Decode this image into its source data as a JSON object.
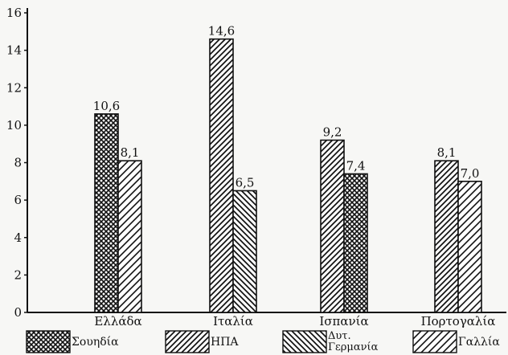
{
  "chart_data": {
    "type": "bar",
    "categories": [
      "Ελλάδα",
      "Ιταλία",
      "Ισπανία",
      "Πορτογαλία"
    ],
    "ylim": [
      0,
      16
    ],
    "yticks": [
      0,
      2,
      4,
      6,
      8,
      10,
      12,
      14,
      16
    ],
    "grid": false,
    "legend_placement": "bottom",
    "legend": [
      {
        "key": "sweden",
        "label_lines": [
          "Σουηδία"
        ],
        "pattern": "crosshatch"
      },
      {
        "key": "usa",
        "label_lines": [
          "ΗΠΑ"
        ],
        "pattern": "diagonal-dense"
      },
      {
        "key": "wgermany",
        "label_lines": [
          "Δυτ.",
          "Γερμανία"
        ],
        "pattern": "backslash"
      },
      {
        "key": "france",
        "label_lines": [
          "Γαλλία"
        ],
        "pattern": "diagonal-sparse"
      }
    ],
    "bars": [
      {
        "category": "Ελλάδα",
        "series": "sweden",
        "value": 10.6,
        "label": "10,6"
      },
      {
        "category": "Ελλάδα",
        "series": "france",
        "value": 8.1,
        "label": "8,1"
      },
      {
        "category": "Ιταλία",
        "series": "usa",
        "value": 14.6,
        "label": "14,6"
      },
      {
        "category": "Ιταλία",
        "series": "wgermany",
        "value": 6.5,
        "label": "6,5"
      },
      {
        "category": "Ισπανία",
        "series": "usa",
        "value": 9.2,
        "label": "9,2"
      },
      {
        "category": "Ισπανία",
        "series": "sweden",
        "value": 7.4,
        "label": "7,4"
      },
      {
        "category": "Πορτογαλία",
        "series": "usa",
        "value": 8.1,
        "label": "8,1"
      },
      {
        "category": "Πορτογαλία",
        "series": "france",
        "value": 7.0,
        "label": "7,0"
      }
    ]
  }
}
